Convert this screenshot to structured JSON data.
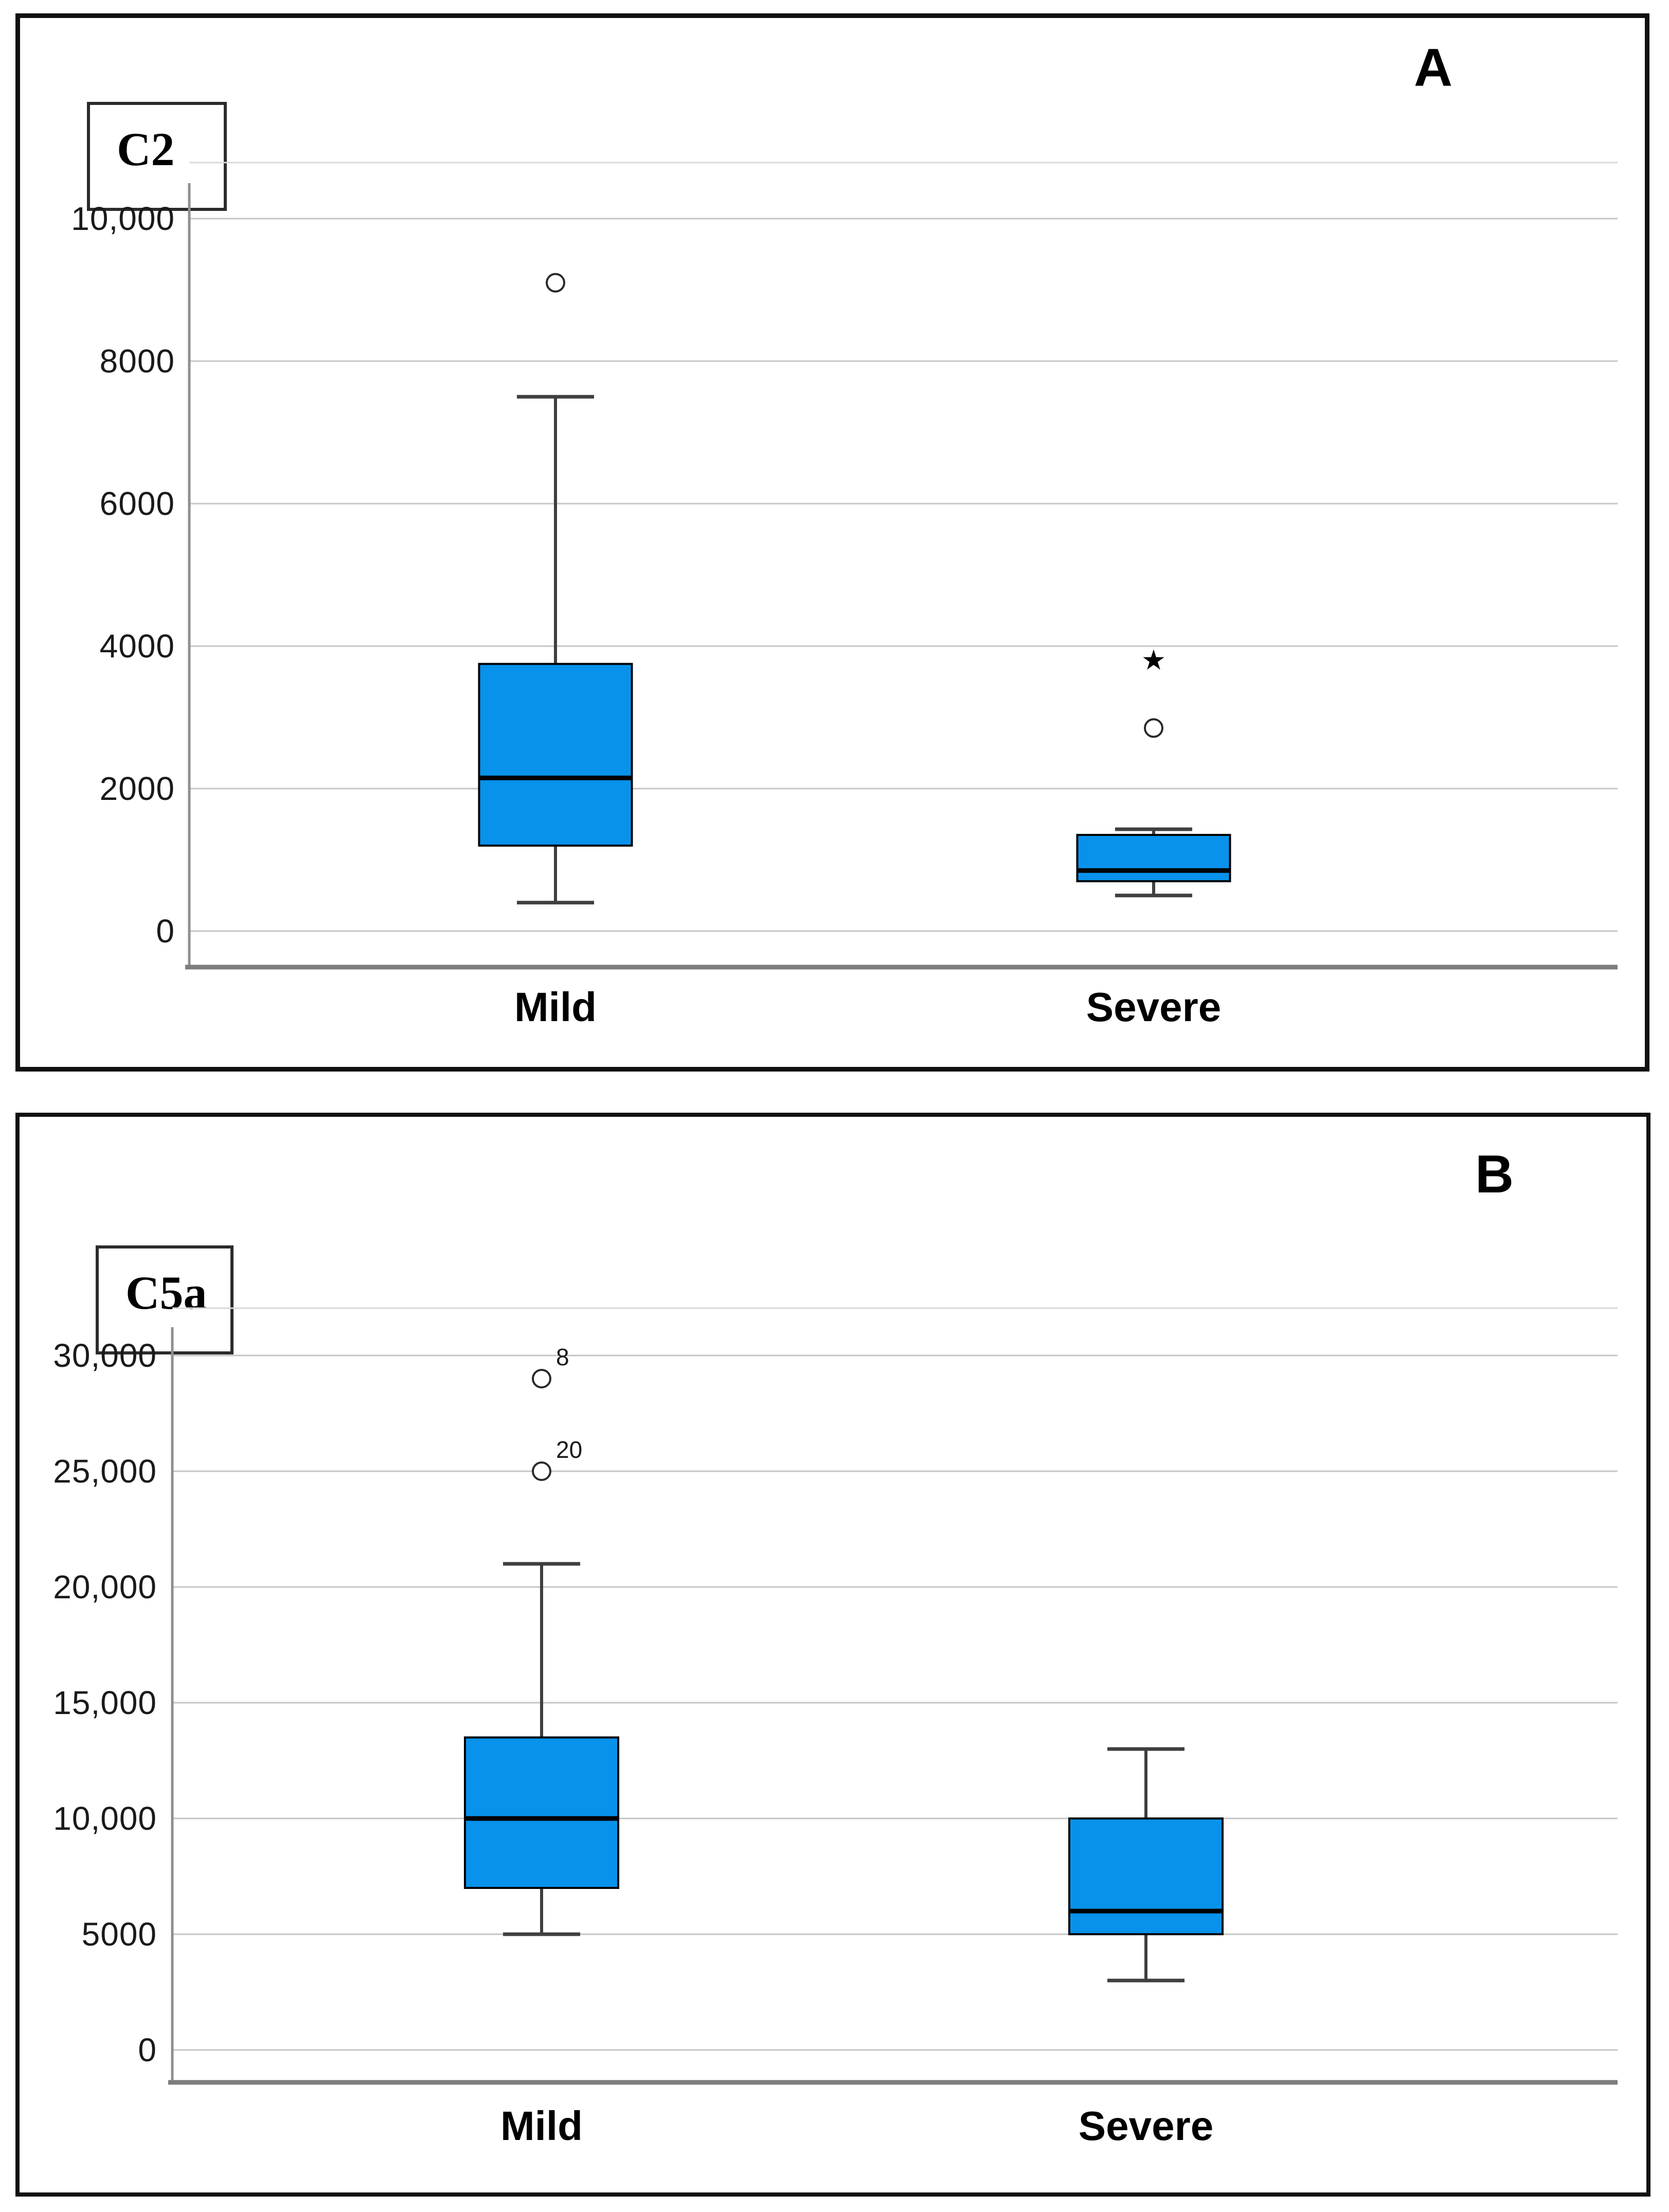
{
  "page": {
    "background": "#ffffff"
  },
  "colors": {
    "box_fill": "#0892eb",
    "box_stroke": "#000000",
    "median": "#000000",
    "whisker": "#3f3f3f",
    "grid": "#c6c6c6",
    "plot_top": "#d9d9d9",
    "axis": "#8f8f8f",
    "plot_bottom": "#7d7d7d",
    "frame": "#111111",
    "text": "#1a1a1a"
  },
  "panels": [
    {
      "corner_label": "A"
    },
    {
      "corner_label": "B"
    }
  ],
  "chart_data": [
    {
      "type": "boxplot",
      "panel": "A",
      "title": "C2",
      "categories": [
        "Mild",
        "Severe"
      ],
      "xlabel": "",
      "ylabel": "",
      "ylim": [
        0,
        10000
      ],
      "grid": true,
      "legend": false,
      "yticks": [
        0,
        2000,
        4000,
        6000,
        8000,
        10000
      ],
      "ytick_labels": [
        "0",
        "2000",
        "4000",
        "6000",
        "8000",
        "10,000"
      ],
      "series": [
        {
          "name": "Mild",
          "min": 400,
          "q1": 1200,
          "median": 2150,
          "q3": 3750,
          "max": 7500,
          "outliers": [
            {
              "value": 9100,
              "marker": "circle"
            }
          ]
        },
        {
          "name": "Severe",
          "min": 500,
          "q1": 700,
          "median": 850,
          "q3": 1350,
          "max": 1430,
          "outliers": [
            {
              "value": 2850,
              "marker": "circle"
            },
            {
              "value": 3800,
              "marker": "star"
            }
          ]
        }
      ]
    },
    {
      "type": "boxplot",
      "panel": "B",
      "title": "C5a",
      "categories": [
        "Mild",
        "Severe"
      ],
      "xlabel": "",
      "ylabel": "",
      "ylim": [
        0,
        30000
      ],
      "grid": true,
      "legend": false,
      "yticks": [
        0,
        5000,
        10000,
        15000,
        20000,
        25000,
        30000
      ],
      "ytick_labels": [
        "0",
        "5000",
        "10,000",
        "15,000",
        "20,000",
        "25,000",
        "30,000"
      ],
      "series": [
        {
          "name": "Mild",
          "min": 5000,
          "q1": 7000,
          "median": 10000,
          "q3": 13500,
          "max": 21000,
          "outliers": [
            {
              "value": 25000,
              "marker": "circle",
              "label": "20"
            },
            {
              "value": 29000,
              "marker": "circle",
              "label": "8"
            }
          ]
        },
        {
          "name": "Severe",
          "min": 3000,
          "q1": 5000,
          "median": 6000,
          "q3": 10000,
          "max": 13000,
          "outliers": []
        }
      ]
    }
  ]
}
